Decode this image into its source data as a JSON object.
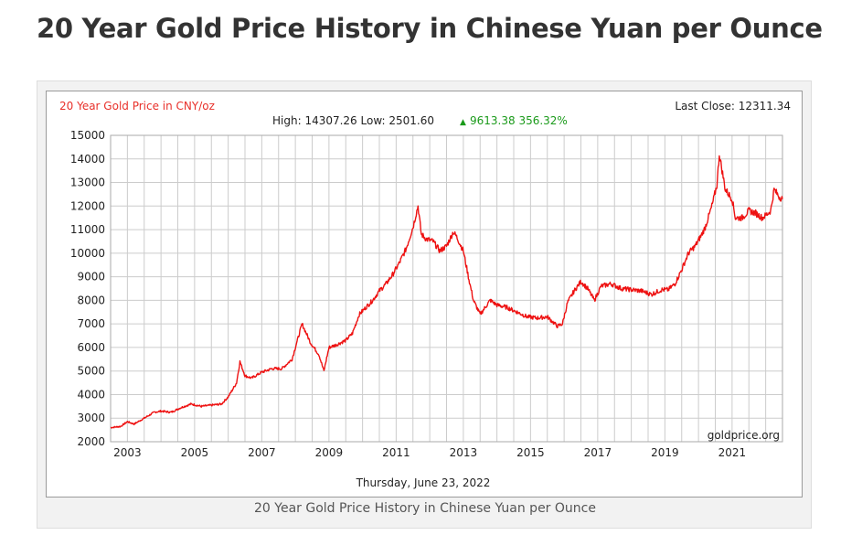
{
  "page": {
    "title": "20 Year Gold Price History in Chinese Yuan per Ounce",
    "caption": "20 Year Gold Price History in Chinese Yuan per Ounce"
  },
  "chart_header": {
    "series_label": "20 Year Gold Price in CNY/oz",
    "last_close": "Last Close: 12311.34",
    "high_low": "High: 14307.26 Low: 2501.60",
    "change": "9613.38 356.32%",
    "change_arrow": "▲",
    "watermark": "goldprice.org",
    "date": "Thursday, June 23, 2022"
  },
  "colors": {
    "series_label": "#e8302a",
    "line": "#ee1111",
    "change": "#1a9a1a",
    "grid": "#cccccc",
    "text": "#222222"
  },
  "chart_data": {
    "type": "line",
    "title": "20 Year Gold Price in CNY/oz",
    "xlabel": "",
    "ylabel": "",
    "xlim": [
      2002.5,
      2022.5
    ],
    "ylim": [
      2000,
      15000
    ],
    "yticks": [
      2000,
      3000,
      4000,
      5000,
      6000,
      7000,
      8000,
      9000,
      10000,
      11000,
      12000,
      13000,
      14000,
      15000
    ],
    "xtick_labels": [
      "2003",
      "2005",
      "2007",
      "2009",
      "2011",
      "2013",
      "2015",
      "2017",
      "2019",
      "2021"
    ],
    "grid": true,
    "series": [
      {
        "name": "20 Year Gold Price in CNY/oz",
        "x": [
          2002.5,
          2002.8,
          2003.0,
          2003.2,
          2003.5,
          2003.8,
          2004.0,
          2004.3,
          2004.6,
          2004.9,
          2005.2,
          2005.5,
          2005.8,
          2006.0,
          2006.25,
          2006.35,
          2006.5,
          2006.7,
          2007.0,
          2007.3,
          2007.6,
          2007.9,
          2008.1,
          2008.2,
          2008.45,
          2008.7,
          2008.85,
          2009.0,
          2009.2,
          2009.5,
          2009.7,
          2009.9,
          2010.1,
          2010.3,
          2010.5,
          2010.7,
          2010.9,
          2011.1,
          2011.3,
          2011.5,
          2011.65,
          2011.75,
          2011.9,
          2012.1,
          2012.3,
          2012.5,
          2012.7,
          2012.8,
          2013.0,
          2013.15,
          2013.3,
          2013.5,
          2013.8,
          2014.0,
          2014.3,
          2014.6,
          2014.9,
          2015.2,
          2015.5,
          2015.8,
          2015.95,
          2016.1,
          2016.3,
          2016.5,
          2016.7,
          2016.9,
          2017.1,
          2017.4,
          2017.7,
          2018.0,
          2018.3,
          2018.6,
          2018.9,
          2019.1,
          2019.3,
          2019.5,
          2019.7,
          2019.9,
          2020.1,
          2020.2,
          2020.4,
          2020.55,
          2020.62,
          2020.8,
          2021.0,
          2021.1,
          2021.3,
          2021.5,
          2021.7,
          2021.9,
          2022.0,
          2022.15,
          2022.25,
          2022.4,
          2022.5
        ],
        "values": [
          2600,
          2650,
          2850,
          2750,
          3000,
          3250,
          3300,
          3250,
          3450,
          3600,
          3500,
          3550,
          3600,
          3900,
          4500,
          5400,
          4800,
          4700,
          4950,
          5100,
          5100,
          5500,
          6500,
          7000,
          6200,
          5700,
          5000,
          6000,
          6100,
          6300,
          6600,
          7400,
          7700,
          8000,
          8400,
          8700,
          9100,
          9600,
          10200,
          11100,
          12000,
          10800,
          10600,
          10500,
          10100,
          10300,
          10900,
          10700,
          10100,
          9000,
          8000,
          7400,
          8000,
          7800,
          7700,
          7500,
          7300,
          7250,
          7300,
          6900,
          7000,
          7900,
          8400,
          8800,
          8500,
          8000,
          8600,
          8700,
          8500,
          8450,
          8400,
          8250,
          8450,
          8450,
          8700,
          9300,
          10000,
          10300,
          10800,
          11100,
          12000,
          12900,
          14200,
          12700,
          12300,
          11500,
          11500,
          11800,
          11700,
          11500,
          11600,
          11800,
          12700,
          12400,
          12300
        ]
      }
    ]
  }
}
